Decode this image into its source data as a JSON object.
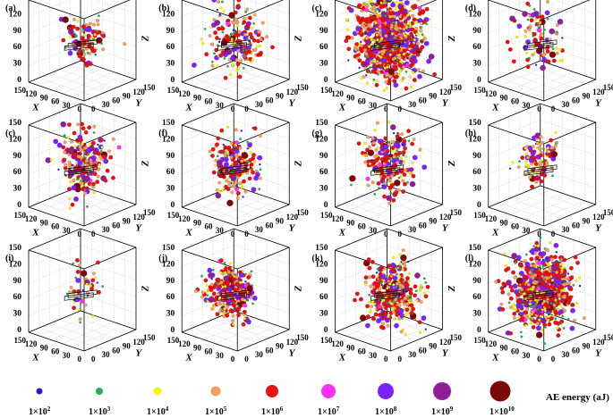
{
  "figure": {
    "legend_title": "AE energy (aJ)"
  },
  "chart_data": {
    "type": "scatter3d",
    "energy_classes": [
      {
        "exp": "2",
        "label": "1×10",
        "color": "#1f1fd0"
      },
      {
        "exp": "3",
        "label": "1×10",
        "color": "#22b24c"
      },
      {
        "exp": "4",
        "label": "1×10",
        "color": "#f5f500"
      },
      {
        "exp": "5",
        "label": "1×10",
        "color": "#f0a060"
      },
      {
        "exp": "6",
        "label": "1×10",
        "color": "#e81010"
      },
      {
        "exp": "7",
        "label": "1×10",
        "color": "#ff2ff5"
      },
      {
        "exp": "8",
        "label": "1×10",
        "color": "#7a22ff"
      },
      {
        "exp": "9",
        "label": "1×10",
        "color": "#8e1e9a"
      },
      {
        "exp": "10",
        "label": "1×10",
        "color": "#7a0a0a"
      }
    ],
    "axes": {
      "x": {
        "label": "X",
        "ticks": [
          "0",
          "30",
          "60",
          "90",
          "120",
          "150"
        ],
        "range": [
          0,
          150
        ]
      },
      "y": {
        "label": "Y",
        "ticks": [
          "0",
          "30",
          "60",
          "90",
          "120",
          "150"
        ],
        "range": [
          0,
          150
        ]
      },
      "z": {
        "label": "Z",
        "ticks": [
          "0",
          "30",
          "60",
          "90",
          "120",
          "150"
        ],
        "range": [
          0,
          150
        ]
      }
    },
    "panels": [
      {
        "label": "(a)",
        "density": 110,
        "spread": 0.55,
        "cx": 0.45,
        "cy": 0.5,
        "cz": 0.5
      },
      {
        "label": "(b)",
        "density": 190,
        "spread": 0.85,
        "cx": 0.5,
        "cy": 0.5,
        "cz": 0.5
      },
      {
        "label": "(c)",
        "density": 950,
        "spread": 1.0,
        "cx": 0.5,
        "cy": 0.5,
        "cz": 0.5
      },
      {
        "label": "(d)",
        "density": 95,
        "spread": 0.75,
        "cx": 0.55,
        "cy": 0.5,
        "cz": 0.5
      },
      {
        "label": "(c)",
        "density": 230,
        "spread": 0.75,
        "cx": 0.45,
        "cy": 0.5,
        "cz": 0.55
      },
      {
        "label": "(f)",
        "density": 220,
        "spread": 0.7,
        "cx": 0.5,
        "cy": 0.5,
        "cz": 0.5
      },
      {
        "label": "(g)",
        "density": 230,
        "spread": 0.75,
        "cx": 0.5,
        "cy": 0.5,
        "cz": 0.5
      },
      {
        "label": "(h)",
        "density": 110,
        "spread": 0.55,
        "cx": 0.55,
        "cy": 0.5,
        "cz": 0.55
      },
      {
        "label": "(i)",
        "density": 45,
        "spread": 0.6,
        "cx": 0.5,
        "cy": 0.5,
        "cz": 0.5
      },
      {
        "label": "(j)",
        "density": 330,
        "spread": 0.6,
        "cx": 0.6,
        "cy": 0.5,
        "cz": 0.45
      },
      {
        "label": "(k)",
        "density": 420,
        "spread": 0.75,
        "cx": 0.45,
        "cy": 0.5,
        "cz": 0.45
      },
      {
        "label": "(l)",
        "density": 900,
        "spread": 0.85,
        "cx": 0.5,
        "cy": 0.5,
        "cz": 0.5
      }
    ]
  }
}
